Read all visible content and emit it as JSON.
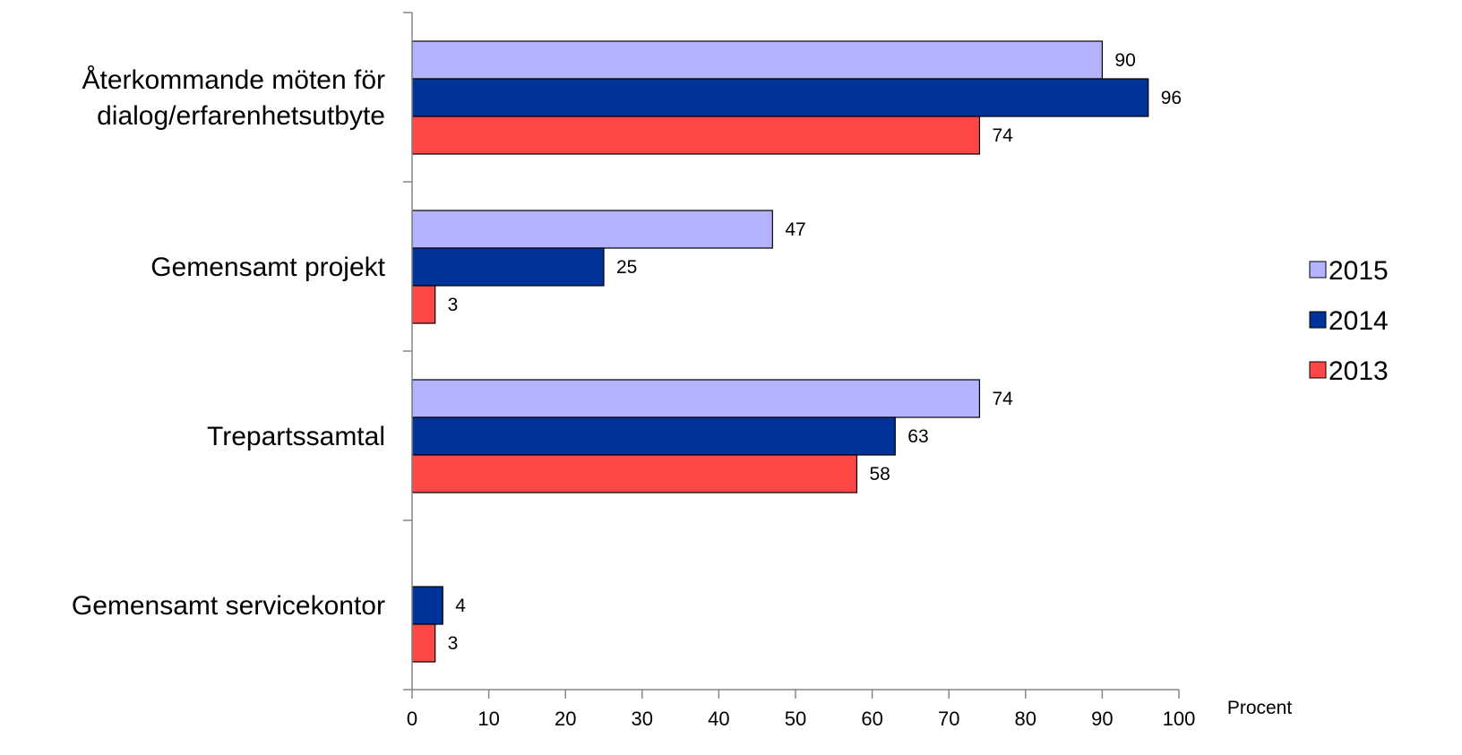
{
  "chart_data": {
    "type": "bar",
    "orientation": "horizontal",
    "title": "",
    "xlabel": "Procent",
    "ylabel": "",
    "xlim": [
      0,
      100
    ],
    "x_ticks": [
      0,
      10,
      20,
      30,
      40,
      50,
      60,
      70,
      80,
      90,
      100
    ],
    "grid": false,
    "legend_position": "right",
    "categories": [
      [
        "Återkommande möten för",
        "dialog/erfarenhetsutbyte"
      ],
      [
        "Gemensamt projekt"
      ],
      [
        "Trepartssamtal"
      ],
      [
        "Gemensamt servicekontor"
      ]
    ],
    "series": [
      {
        "name": "2015",
        "color": "#b3b3ff",
        "values": [
          90,
          47,
          74,
          null
        ]
      },
      {
        "name": "2014",
        "color": "#003399",
        "values": [
          96,
          25,
          63,
          4
        ]
      },
      {
        "name": "2013",
        "color": "#ff4747",
        "values": [
          74,
          3,
          58,
          3
        ]
      }
    ]
  }
}
